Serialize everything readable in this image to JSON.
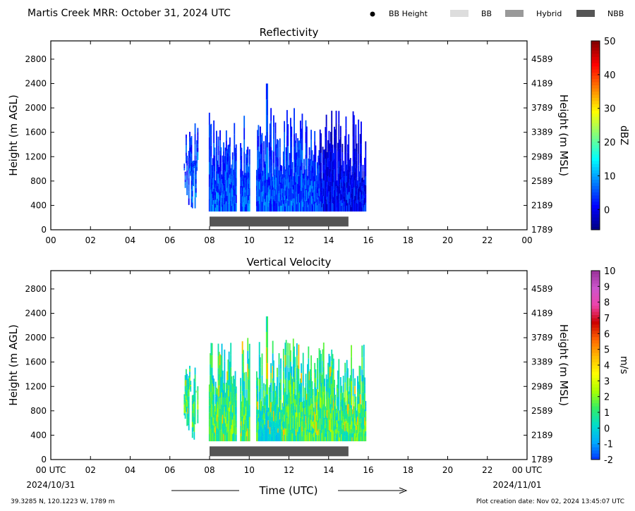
{
  "header": {
    "title": "Martis Creek MRR:  October 31, 2024 UTC",
    "legend": [
      {
        "label": "BB Height",
        "kind": "dot",
        "color": "#000000"
      },
      {
        "label": "BB",
        "kind": "rect",
        "color": "#dddddd"
      },
      {
        "label": "Hybrid",
        "kind": "rect",
        "color": "#999999"
      },
      {
        "label": "NBB",
        "kind": "rect",
        "color": "#555555"
      }
    ]
  },
  "footer": {
    "xlabel": "Time (UTC)",
    "start_date": "2024/10/31",
    "end_date": "2024/11/01",
    "location": "39.3285 N, 120.1223 W, 1789 m",
    "creation": "Plot creation date: Nov 02, 2024 13:45:07 UTC"
  },
  "chart_data": [
    {
      "type": "heatmap",
      "title": "Reflectivity",
      "ylabel": "Height (m AGL)",
      "y2label": "Height (m MSL)",
      "xlim": [
        0,
        24
      ],
      "ylim": [
        0,
        3100
      ],
      "xticks": [
        "00",
        "02",
        "04",
        "06",
        "08",
        "10",
        "12",
        "14",
        "16",
        "18",
        "20",
        "22",
        "00"
      ],
      "yticks": [
        0,
        400,
        800,
        1200,
        1600,
        2000,
        2400,
        2800
      ],
      "y2ticks": [
        1789,
        2189,
        2589,
        2989,
        3389,
        3789,
        4189,
        4589
      ],
      "colorbar": {
        "label": "dBZ",
        "min": -6,
        "max": 50,
        "ticks": [
          0,
          10,
          20,
          30,
          40,
          50
        ],
        "colors": [
          "#00007f",
          "#0000ff",
          "#007fff",
          "#00ffff",
          "#7fff7f",
          "#ffff00",
          "#ff7f00",
          "#ff0000",
          "#7f0000"
        ]
      },
      "nbb_bar": {
        "start": 8.0,
        "end": 15.0,
        "label": "NBB",
        "color": "#555555"
      },
      "echo": {
        "start": 6.7,
        "end": 15.85,
        "base": 300,
        "max_top": 2400,
        "value_range": [
          -4,
          14
        ]
      }
    },
    {
      "type": "heatmap",
      "title": "Vertical Velocity",
      "ylabel": "Height (m AGL)",
      "y2label": "Height (m MSL)",
      "xlim": [
        0,
        24
      ],
      "ylim": [
        0,
        3100
      ],
      "xticks": [
        "00 UTC",
        "02",
        "04",
        "06",
        "08",
        "10",
        "12",
        "14",
        "16",
        "18",
        "20",
        "22",
        "00 UTC"
      ],
      "yticks": [
        0,
        400,
        800,
        1200,
        1600,
        2000,
        2400,
        2800
      ],
      "y2ticks": [
        1789,
        2189,
        2589,
        2989,
        3389,
        3789,
        4189,
        4589
      ],
      "colorbar": {
        "label": "m/s",
        "min": -2,
        "max": 10,
        "ticks": [
          -2,
          -1,
          0,
          1,
          2,
          3,
          4,
          5,
          6,
          7,
          8,
          9,
          10
        ],
        "colors": [
          "#0033ff",
          "#00aaff",
          "#00ddcc",
          "#33ee66",
          "#aaff00",
          "#ffff00",
          "#ffbb00",
          "#ff6600",
          "#cc0000",
          "#ee44aa",
          "#cc55cc",
          "#993399"
        ]
      },
      "nbb_bar": {
        "start": 8.0,
        "end": 15.0,
        "label": "NBB",
        "color": "#555555"
      },
      "echo": {
        "start": 6.7,
        "end": 15.85,
        "base": 300,
        "max_top": 2350,
        "value_range": [
          -1,
          6
        ]
      }
    }
  ]
}
